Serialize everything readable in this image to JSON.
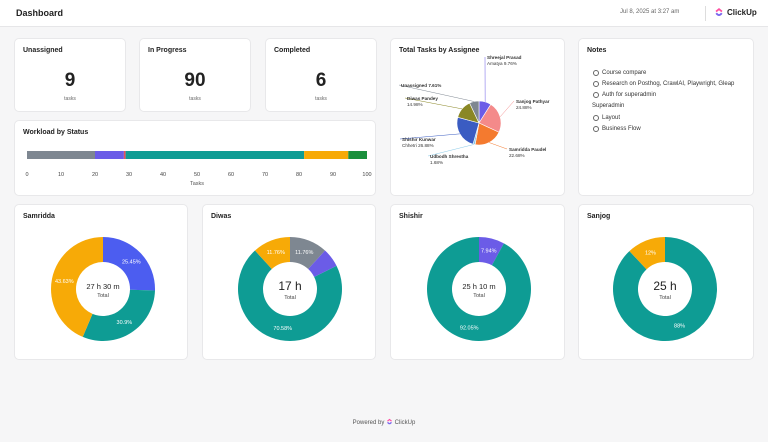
{
  "header": {
    "title": "Dashboard",
    "date": "Jul 8, 2025 at 3:27 am",
    "brand": "ClickUp"
  },
  "kpis": [
    {
      "label": "Unassigned",
      "value": "9",
      "unit": "tasks"
    },
    {
      "label": "In Progress",
      "value": "90",
      "unit": "tasks"
    },
    {
      "label": "Completed",
      "value": "6",
      "unit": "tasks"
    }
  ],
  "workload": {
    "title": "Workload by Status",
    "xlabel": "Tasks"
  },
  "assignee": {
    "title": "Total Tasks by Assignee"
  },
  "notes": {
    "title": "Notes",
    "items": [
      "Course compare",
      "Research on Posthog, CrawlAI, Playwright, Gleap",
      "Auth for superadmin"
    ],
    "subheading": "Superadmin",
    "sub_items": [
      "Layout",
      "Business Flow"
    ]
  },
  "donut_cards": [
    {
      "title": "Samridda",
      "center": "27 h 30 m",
      "sub": "Total"
    },
    {
      "title": "Diwas",
      "center": "17 h",
      "sub": "Total"
    },
    {
      "title": "Shishir",
      "center": "25 h 10 m",
      "sub": "Total"
    },
    {
      "title": "Sanjog",
      "center": "25 h",
      "sub": "Total"
    }
  ],
  "footer": {
    "prefix": "Powered by",
    "brand": "ClickUp"
  },
  "colors": {
    "gray": "#7e8791",
    "purple": "#6b5ce7",
    "red": "#e8505b",
    "teal": "#0e9c94",
    "orange": "#f7aa07",
    "green": "#1a8f3c",
    "blue": "#4c5df0",
    "salmon": "#f48a8a",
    "olive": "#8a8724",
    "navy": "#3a5cc2"
  },
  "chart_data": [
    {
      "type": "bar",
      "title": "Workload by Status",
      "xlabel": "Tasks",
      "xlim": [
        0,
        100
      ],
      "ticks": [
        0,
        10,
        20,
        30,
        40,
        50,
        60,
        70,
        80,
        90,
        100
      ],
      "segments": [
        {
          "value": 20,
          "color": "#7e8791"
        },
        {
          "value": 8.5,
          "color": "#6b5ce7"
        },
        {
          "value": 0.5,
          "color": "#e8505b"
        },
        {
          "value": 52.5,
          "color": "#0e9c94"
        },
        {
          "value": 13,
          "color": "#f7aa07"
        },
        {
          "value": 5.5,
          "color": "#1a8f3c"
        }
      ]
    },
    {
      "type": "pie",
      "title": "Total Tasks by Assignee",
      "slices": [
        {
          "label": "Shreejal Prasad Amatya",
          "pct": "9.76%",
          "value": 9.76,
          "color": "#6b5ce7"
        },
        {
          "label": "Sanjog Pathyar",
          "pct": "24.88%",
          "value": 24.88,
          "color": "#f48a8a"
        },
        {
          "label": "Samridda Paudel",
          "pct": "22.68%",
          "value": 22.68,
          "color": "#f47a2f"
        },
        {
          "label": "Udbodh Shrestha",
          "pct": "1.68%",
          "value": 1.68,
          "color": "#88c9e8"
        },
        {
          "label": "Shishir Kunwar Chhetri",
          "pct": "26.88%",
          "value": 26.88,
          "color": "#3a5cc2"
        },
        {
          "label": "Diwas Pandey",
          "pct": "14.98%",
          "value": 14.98,
          "color": "#8a8724"
        },
        {
          "label": "Unassigned",
          "pct": "7.61%",
          "value": 7.61,
          "color": "#7e8791"
        }
      ]
    },
    {
      "type": "pie",
      "title": "Samridda",
      "slices": [
        {
          "value": 25.45,
          "label": "25.45%",
          "color": "#4c5df0"
        },
        {
          "value": 30.9,
          "label": "30.9%",
          "color": "#0e9c94"
        },
        {
          "value": 43.63,
          "label": "43.63%",
          "color": "#f7aa07"
        }
      ]
    },
    {
      "type": "pie",
      "title": "Diwas",
      "slices": [
        {
          "value": 11.76,
          "label": "11.76%",
          "color": "#7e8791"
        },
        {
          "value": 5.9,
          "label": "",
          "color": "#6b5ce7"
        },
        {
          "value": 70.58,
          "label": "70.58%",
          "color": "#0e9c94"
        },
        {
          "value": 11.76,
          "label": "11.76%",
          "color": "#f7aa07"
        }
      ]
    },
    {
      "type": "pie",
      "title": "Shishir",
      "slices": [
        {
          "value": 7.94,
          "label": "7.94%",
          "color": "#6b5ce7"
        },
        {
          "value": 92.05,
          "label": "92.05%",
          "color": "#0e9c94"
        }
      ]
    },
    {
      "type": "pie",
      "title": "Sanjog",
      "slices": [
        {
          "value": 88,
          "label": "88%",
          "color": "#0e9c94"
        },
        {
          "value": 12,
          "label": "12%",
          "color": "#f7aa07"
        }
      ]
    }
  ]
}
